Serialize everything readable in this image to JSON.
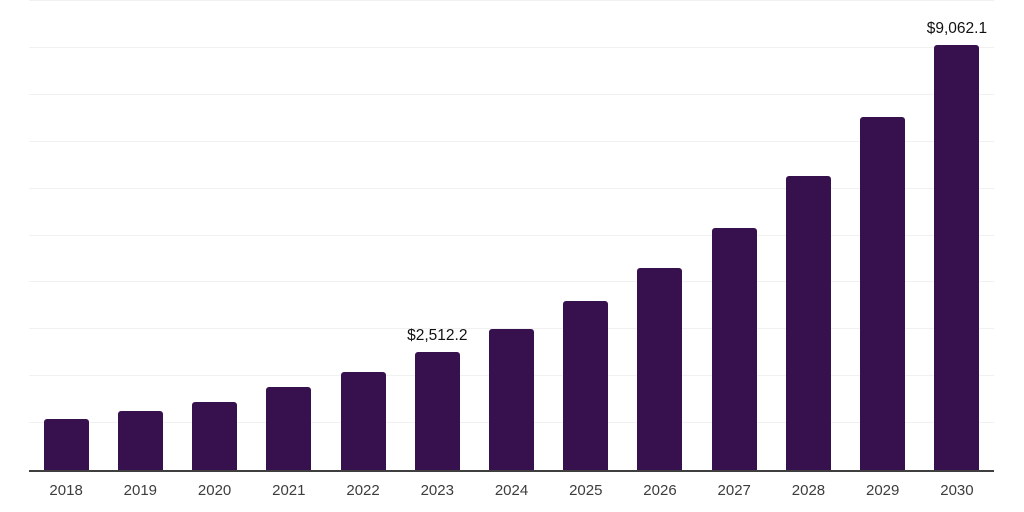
{
  "chart_data": {
    "type": "bar",
    "title": "",
    "xlabel": "",
    "ylabel": "",
    "categories": [
      "2018",
      "2019",
      "2020",
      "2021",
      "2022",
      "2023",
      "2024",
      "2025",
      "2026",
      "2027",
      "2028",
      "2029",
      "2030"
    ],
    "values": [
      1080,
      1255,
      1455,
      1775,
      2080,
      2512.2,
      3000,
      3600,
      4310,
      5170,
      6270,
      7530,
      9062.1
    ],
    "annotations": [
      {
        "index": 5,
        "text": "$2,512.2"
      },
      {
        "index": 12,
        "text": "$9,062.1"
      }
    ],
    "ylim": [
      0,
      10000
    ],
    "gridline_step": 1000,
    "grid": true,
    "legend": false,
    "colors": {
      "bar": "#36114d",
      "gridline": "#f1f1f1",
      "axis_line": "#3f3f3f",
      "tick_label": "#3d3d3d",
      "annotation_text": "#111111",
      "background": "#ffffff"
    }
  }
}
